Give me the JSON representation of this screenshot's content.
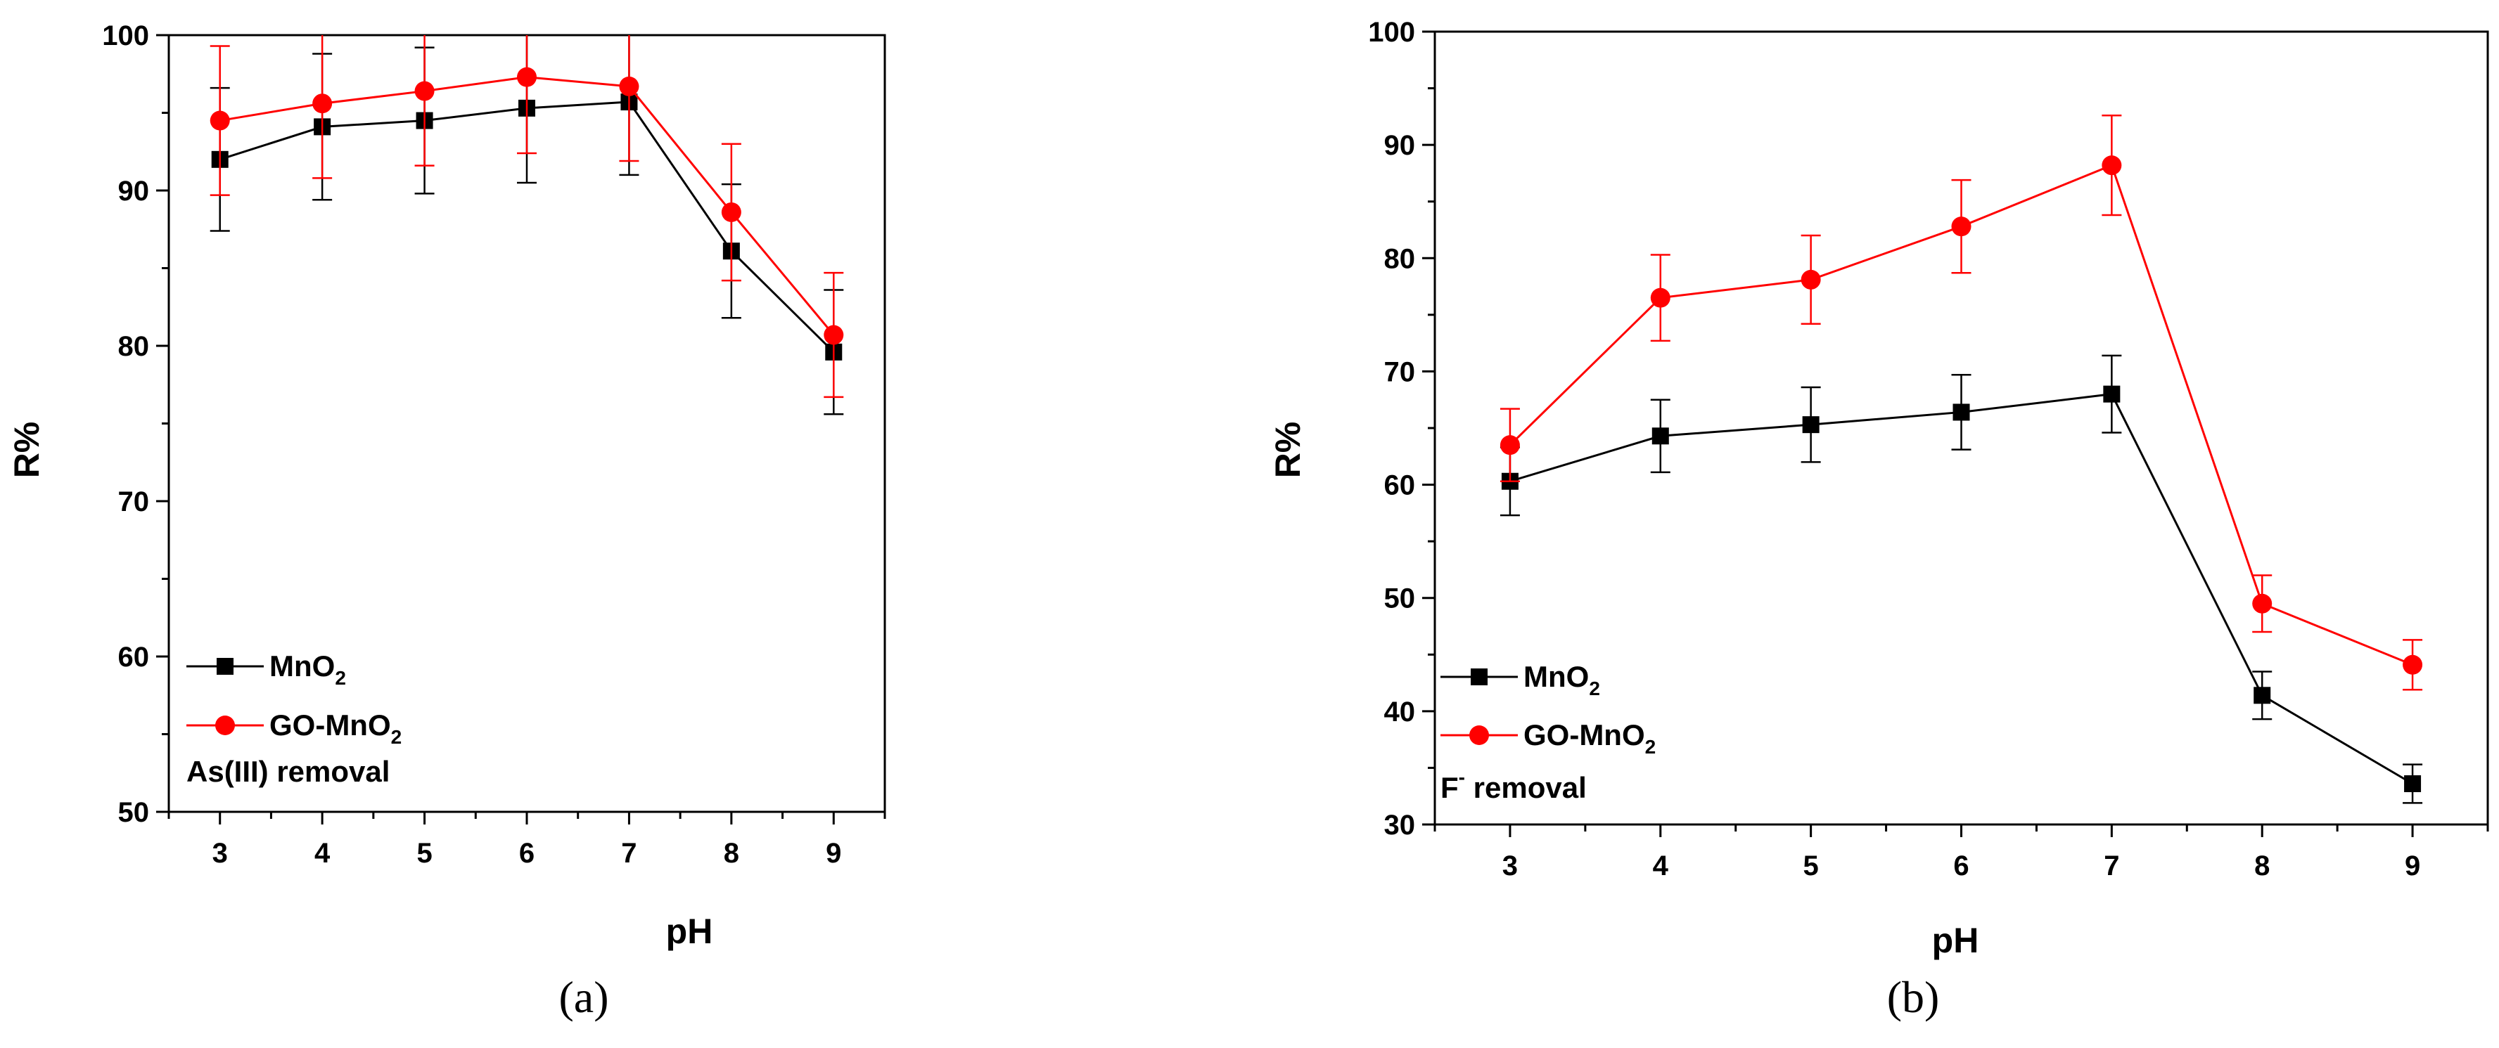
{
  "chart_data": [
    {
      "type": "line",
      "panel_label": "(a)",
      "xlabel": "pH",
      "ylabel": "R%",
      "x": [
        3,
        4,
        5,
        6,
        7,
        8,
        9
      ],
      "xlim": [
        2.5,
        9.5
      ],
      "ylim": [
        50,
        100
      ],
      "xticks": [
        3,
        4,
        5,
        6,
        7,
        8,
        9
      ],
      "yticks": [
        50,
        60,
        70,
        80,
        90,
        100
      ],
      "annotation": "As(III) removal",
      "legend_position": "bottom-left",
      "grid": false,
      "series": [
        {
          "name": "MnO2",
          "label_main": "MnO",
          "label_sub": "2",
          "color": "#000000",
          "marker": "square",
          "values": [
            92.0,
            94.1,
            94.5,
            95.3,
            95.7,
            86.1,
            79.6
          ],
          "errors": [
            4.6,
            4.7,
            4.7,
            4.8,
            4.7,
            4.3,
            4.0
          ]
        },
        {
          "name": "GO-MnO2",
          "label_main": "GO-MnO",
          "label_sub": "2",
          "color": "#ff0000",
          "marker": "circle",
          "values": [
            94.5,
            95.6,
            96.4,
            97.3,
            96.7,
            88.6,
            80.7
          ],
          "errors": [
            4.8,
            4.8,
            4.8,
            4.9,
            4.8,
            4.4,
            4.0
          ]
        }
      ]
    },
    {
      "type": "line",
      "panel_label": "(b)",
      "xlabel": "pH",
      "ylabel": "R%",
      "x": [
        3,
        4,
        5,
        6,
        7,
        8,
        9
      ],
      "xlim": [
        2.5,
        9.5
      ],
      "ylim": [
        30,
        100
      ],
      "xticks": [
        3,
        4,
        5,
        6,
        7,
        8,
        9
      ],
      "yticks": [
        30,
        40,
        50,
        60,
        70,
        80,
        90,
        100
      ],
      "annotation_main": "F",
      "annotation_sup": "-",
      "annotation_rest": " removal",
      "legend_position": "bottom-left",
      "grid": false,
      "series": [
        {
          "name": "MnO2",
          "label_main": "MnO",
          "label_sub": "2",
          "color": "#000000",
          "marker": "square",
          "values": [
            60.3,
            64.3,
            65.3,
            66.4,
            68.0,
            41.4,
            33.6
          ],
          "errors": [
            3.0,
            3.2,
            3.3,
            3.3,
            3.4,
            2.1,
            1.7
          ]
        },
        {
          "name": "GO-MnO2",
          "label_main": "GO-MnO",
          "label_sub": "2",
          "color": "#ff0000",
          "marker": "circle",
          "values": [
            63.5,
            76.5,
            78.1,
            82.8,
            88.2,
            49.5,
            44.1
          ],
          "errors": [
            3.2,
            3.8,
            3.9,
            4.1,
            4.4,
            2.5,
            2.2
          ]
        }
      ]
    }
  ]
}
